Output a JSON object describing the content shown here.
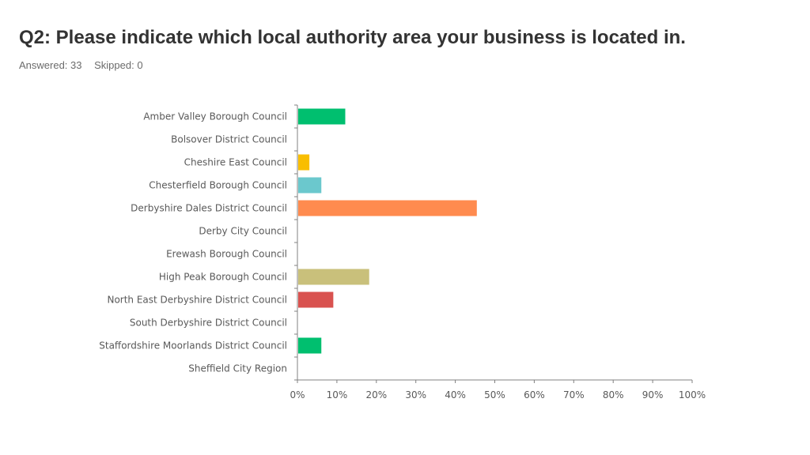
{
  "header": {
    "title": "Q2: Please indicate which local authority area your business is located in.",
    "answered": "Answered: 33",
    "skipped": "Skipped: 0"
  },
  "chart_data": {
    "type": "bar",
    "orientation": "horizontal",
    "categories": [
      "Amber Valley Borough Council",
      "Bolsover District Council",
      "Cheshire East Council",
      "Chesterfield Borough Council",
      "Derbyshire Dales District Council",
      "Derby City Council",
      "Erewash Borough Council",
      "High Peak Borough Council",
      "North East Derbyshire District Council",
      "South Derbyshire District Council",
      "Staffordshire Moorlands District Council",
      "Sheffield City Region"
    ],
    "values": [
      12.12,
      0,
      3.03,
      6.06,
      45.45,
      0,
      0,
      18.18,
      9.09,
      0,
      6.06,
      0
    ],
    "colors": [
      "#00bf6f",
      "#00bf6f",
      "#f9be00",
      "#6bc8cd",
      "#ff8b4f",
      "#7f7ce6",
      "#f05b24",
      "#c9c07b",
      "#d9524f",
      "#00bf6f",
      "#00bf6f",
      "#f9be00"
    ],
    "xlim": [
      0,
      100
    ],
    "xticks": [
      "0%",
      "10%",
      "20%",
      "30%",
      "40%",
      "50%",
      "60%",
      "70%",
      "80%",
      "90%",
      "100%"
    ],
    "title": "",
    "xlabel": "",
    "ylabel": "",
    "grid": false,
    "legend": "none"
  }
}
